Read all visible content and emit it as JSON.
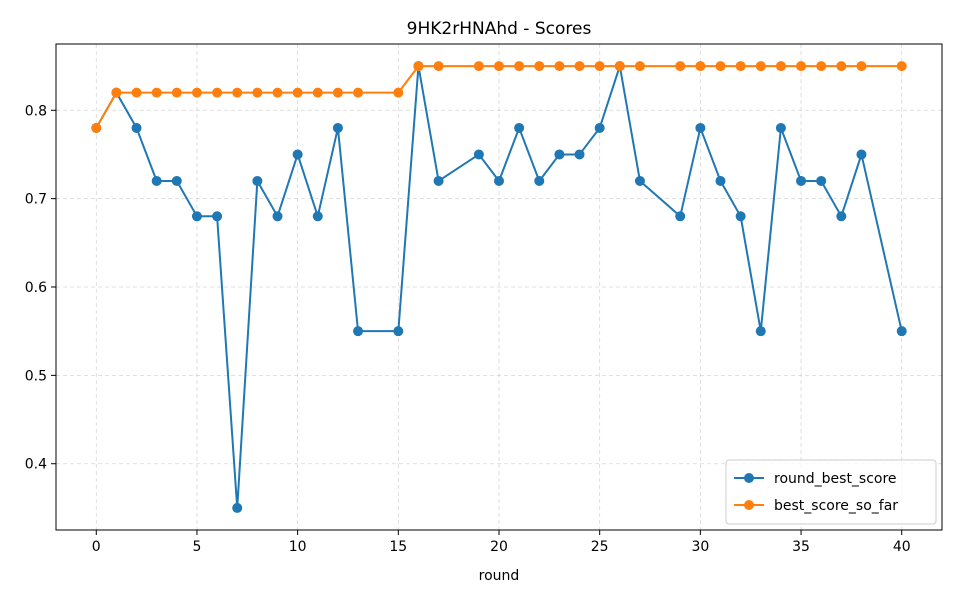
{
  "chart_data": {
    "type": "line",
    "title": "9HK2rHNAhd - Scores",
    "xlabel": "round",
    "ylabel": "",
    "xlim": [
      -2,
      42
    ],
    "ylim": [
      0.325,
      0.875
    ],
    "xticks": [
      0,
      5,
      10,
      15,
      20,
      25,
      30,
      35,
      40
    ],
    "yticks": [
      0.4,
      0.5,
      0.6,
      0.7,
      0.8
    ],
    "grid": true,
    "legend_position": "bottom-right",
    "series": [
      {
        "name": "round_best_score",
        "color": "#1f77b4",
        "x": [
          0,
          1,
          2,
          3,
          4,
          5,
          6,
          7,
          8,
          9,
          10,
          11,
          12,
          13,
          15,
          16,
          17,
          19,
          20,
          21,
          22,
          23,
          24,
          25,
          26,
          27,
          29,
          30,
          31,
          32,
          33,
          34,
          35,
          36,
          37,
          38,
          40
        ],
        "y": [
          0.78,
          0.82,
          0.78,
          0.72,
          0.72,
          0.68,
          0.68,
          0.35,
          0.72,
          0.68,
          0.75,
          0.68,
          0.78,
          0.55,
          0.55,
          0.85,
          0.72,
          0.75,
          0.72,
          0.78,
          0.72,
          0.75,
          0.75,
          0.78,
          0.85,
          0.72,
          0.68,
          0.78,
          0.72,
          0.68,
          0.55,
          0.78,
          0.72,
          0.72,
          0.68,
          0.75,
          0.55
        ]
      },
      {
        "name": "best_score_so_far",
        "color": "#ff7f0e",
        "x": [
          0,
          1,
          2,
          3,
          4,
          5,
          6,
          7,
          8,
          9,
          10,
          11,
          12,
          13,
          15,
          16,
          17,
          19,
          20,
          21,
          22,
          23,
          24,
          25,
          26,
          27,
          29,
          30,
          31,
          32,
          33,
          34,
          35,
          36,
          37,
          38,
          40
        ],
        "y": [
          0.78,
          0.82,
          0.82,
          0.82,
          0.82,
          0.82,
          0.82,
          0.82,
          0.82,
          0.82,
          0.82,
          0.82,
          0.82,
          0.82,
          0.82,
          0.85,
          0.85,
          0.85,
          0.85,
          0.85,
          0.85,
          0.85,
          0.85,
          0.85,
          0.85,
          0.85,
          0.85,
          0.85,
          0.85,
          0.85,
          0.85,
          0.85,
          0.85,
          0.85,
          0.85,
          0.85,
          0.85
        ]
      }
    ]
  }
}
